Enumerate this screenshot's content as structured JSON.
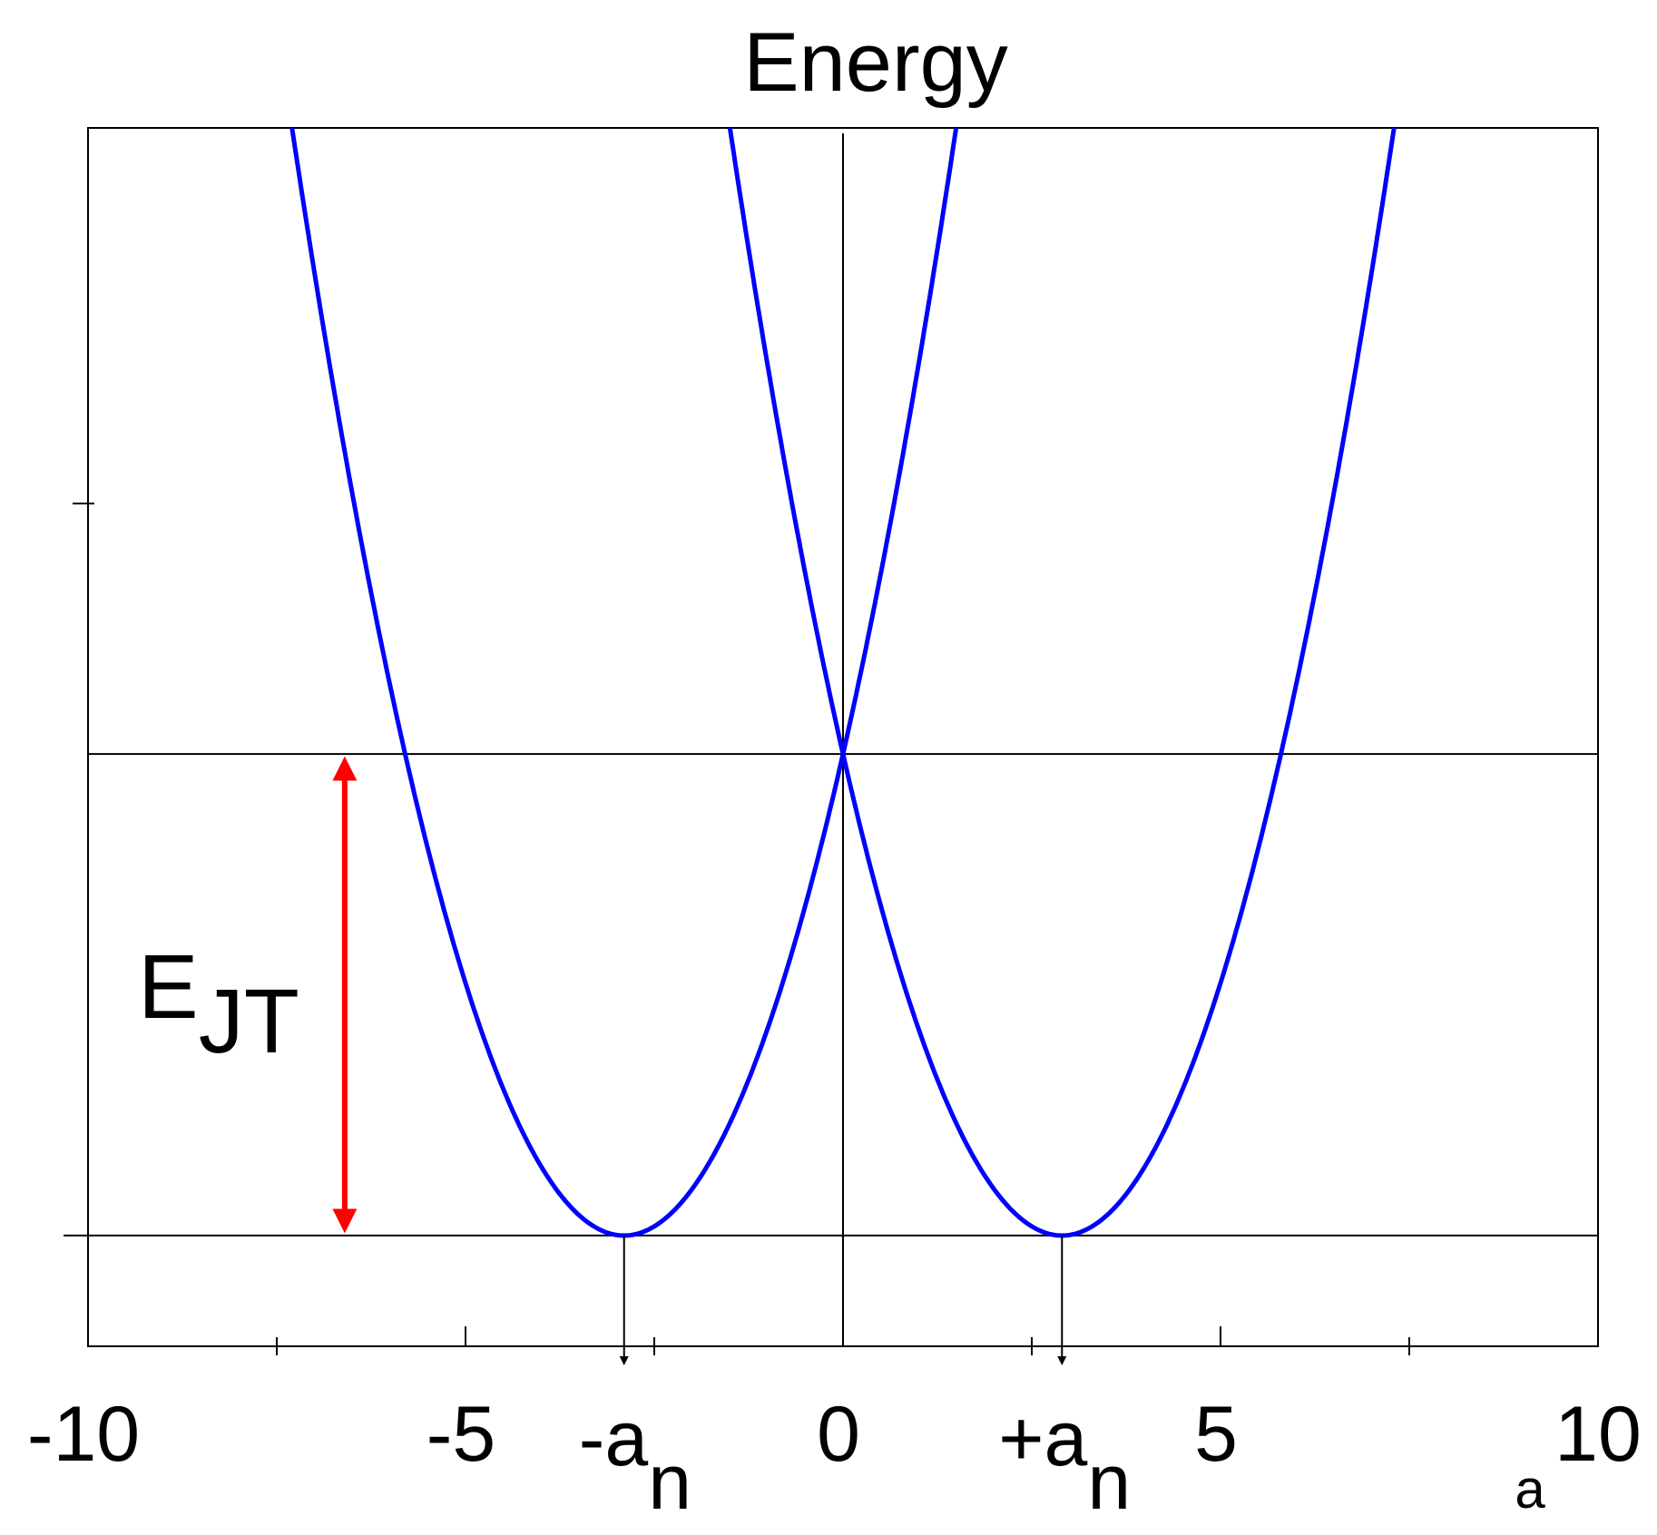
{
  "chart_data": {
    "type": "line",
    "title": "Energy",
    "xlabel": "a",
    "ylabel": "",
    "xlim": [
      -10,
      10
    ],
    "ylim": [
      -0.23,
      2.3
    ],
    "grid": false,
    "x_ticks": [
      "-10",
      "-5",
      "0",
      "5",
      "10"
    ],
    "x_tick_values": [
      -10,
      -5,
      0,
      5,
      10
    ],
    "x_minor_tick_values": [
      -7.5,
      -2.5,
      2.5,
      7.5
    ],
    "y_tick_values": [
      1.0
    ],
    "series": [
      {
        "center": -2.9,
        "x": [
          -7.8,
          -6.5,
          -5.0,
          -3.5,
          -2.9,
          -2.3,
          -1.0,
          0.0,
          1.0,
          1.7
        ],
        "y": [
          2.85,
          1.5,
          0.52,
          0.04,
          0.0,
          0.04,
          0.43,
          1.0,
          1.8,
          2.5
        ]
      },
      {
        "center": 2.9,
        "x": [
          -1.7,
          -1.0,
          0.0,
          1.0,
          2.3,
          2.9,
          3.5,
          5.0,
          6.5,
          7.8
        ],
        "y": [
          2.5,
          1.8,
          1.0,
          0.43,
          0.04,
          0.0,
          0.04,
          0.52,
          1.5,
          2.85
        ]
      }
    ],
    "reference_lines": {
      "horizontal_y": [
        0,
        1
      ],
      "vertical_x": [
        0
      ]
    },
    "annotations": {
      "minima_markers": [
        {
          "x": -2.9,
          "label_main": "-a",
          "label_sub": "n"
        },
        {
          "x": 2.9,
          "label_main": "+a",
          "label_sub": "n"
        }
      ],
      "ejt_arrow": {
        "x": -6.6,
        "y_from": 0,
        "y_to": 1,
        "label_main": "E",
        "label_sub": "JT"
      }
    },
    "colors": {
      "curve": "#0000ff",
      "axis": "#000000",
      "arrow": "#ff0000"
    }
  }
}
